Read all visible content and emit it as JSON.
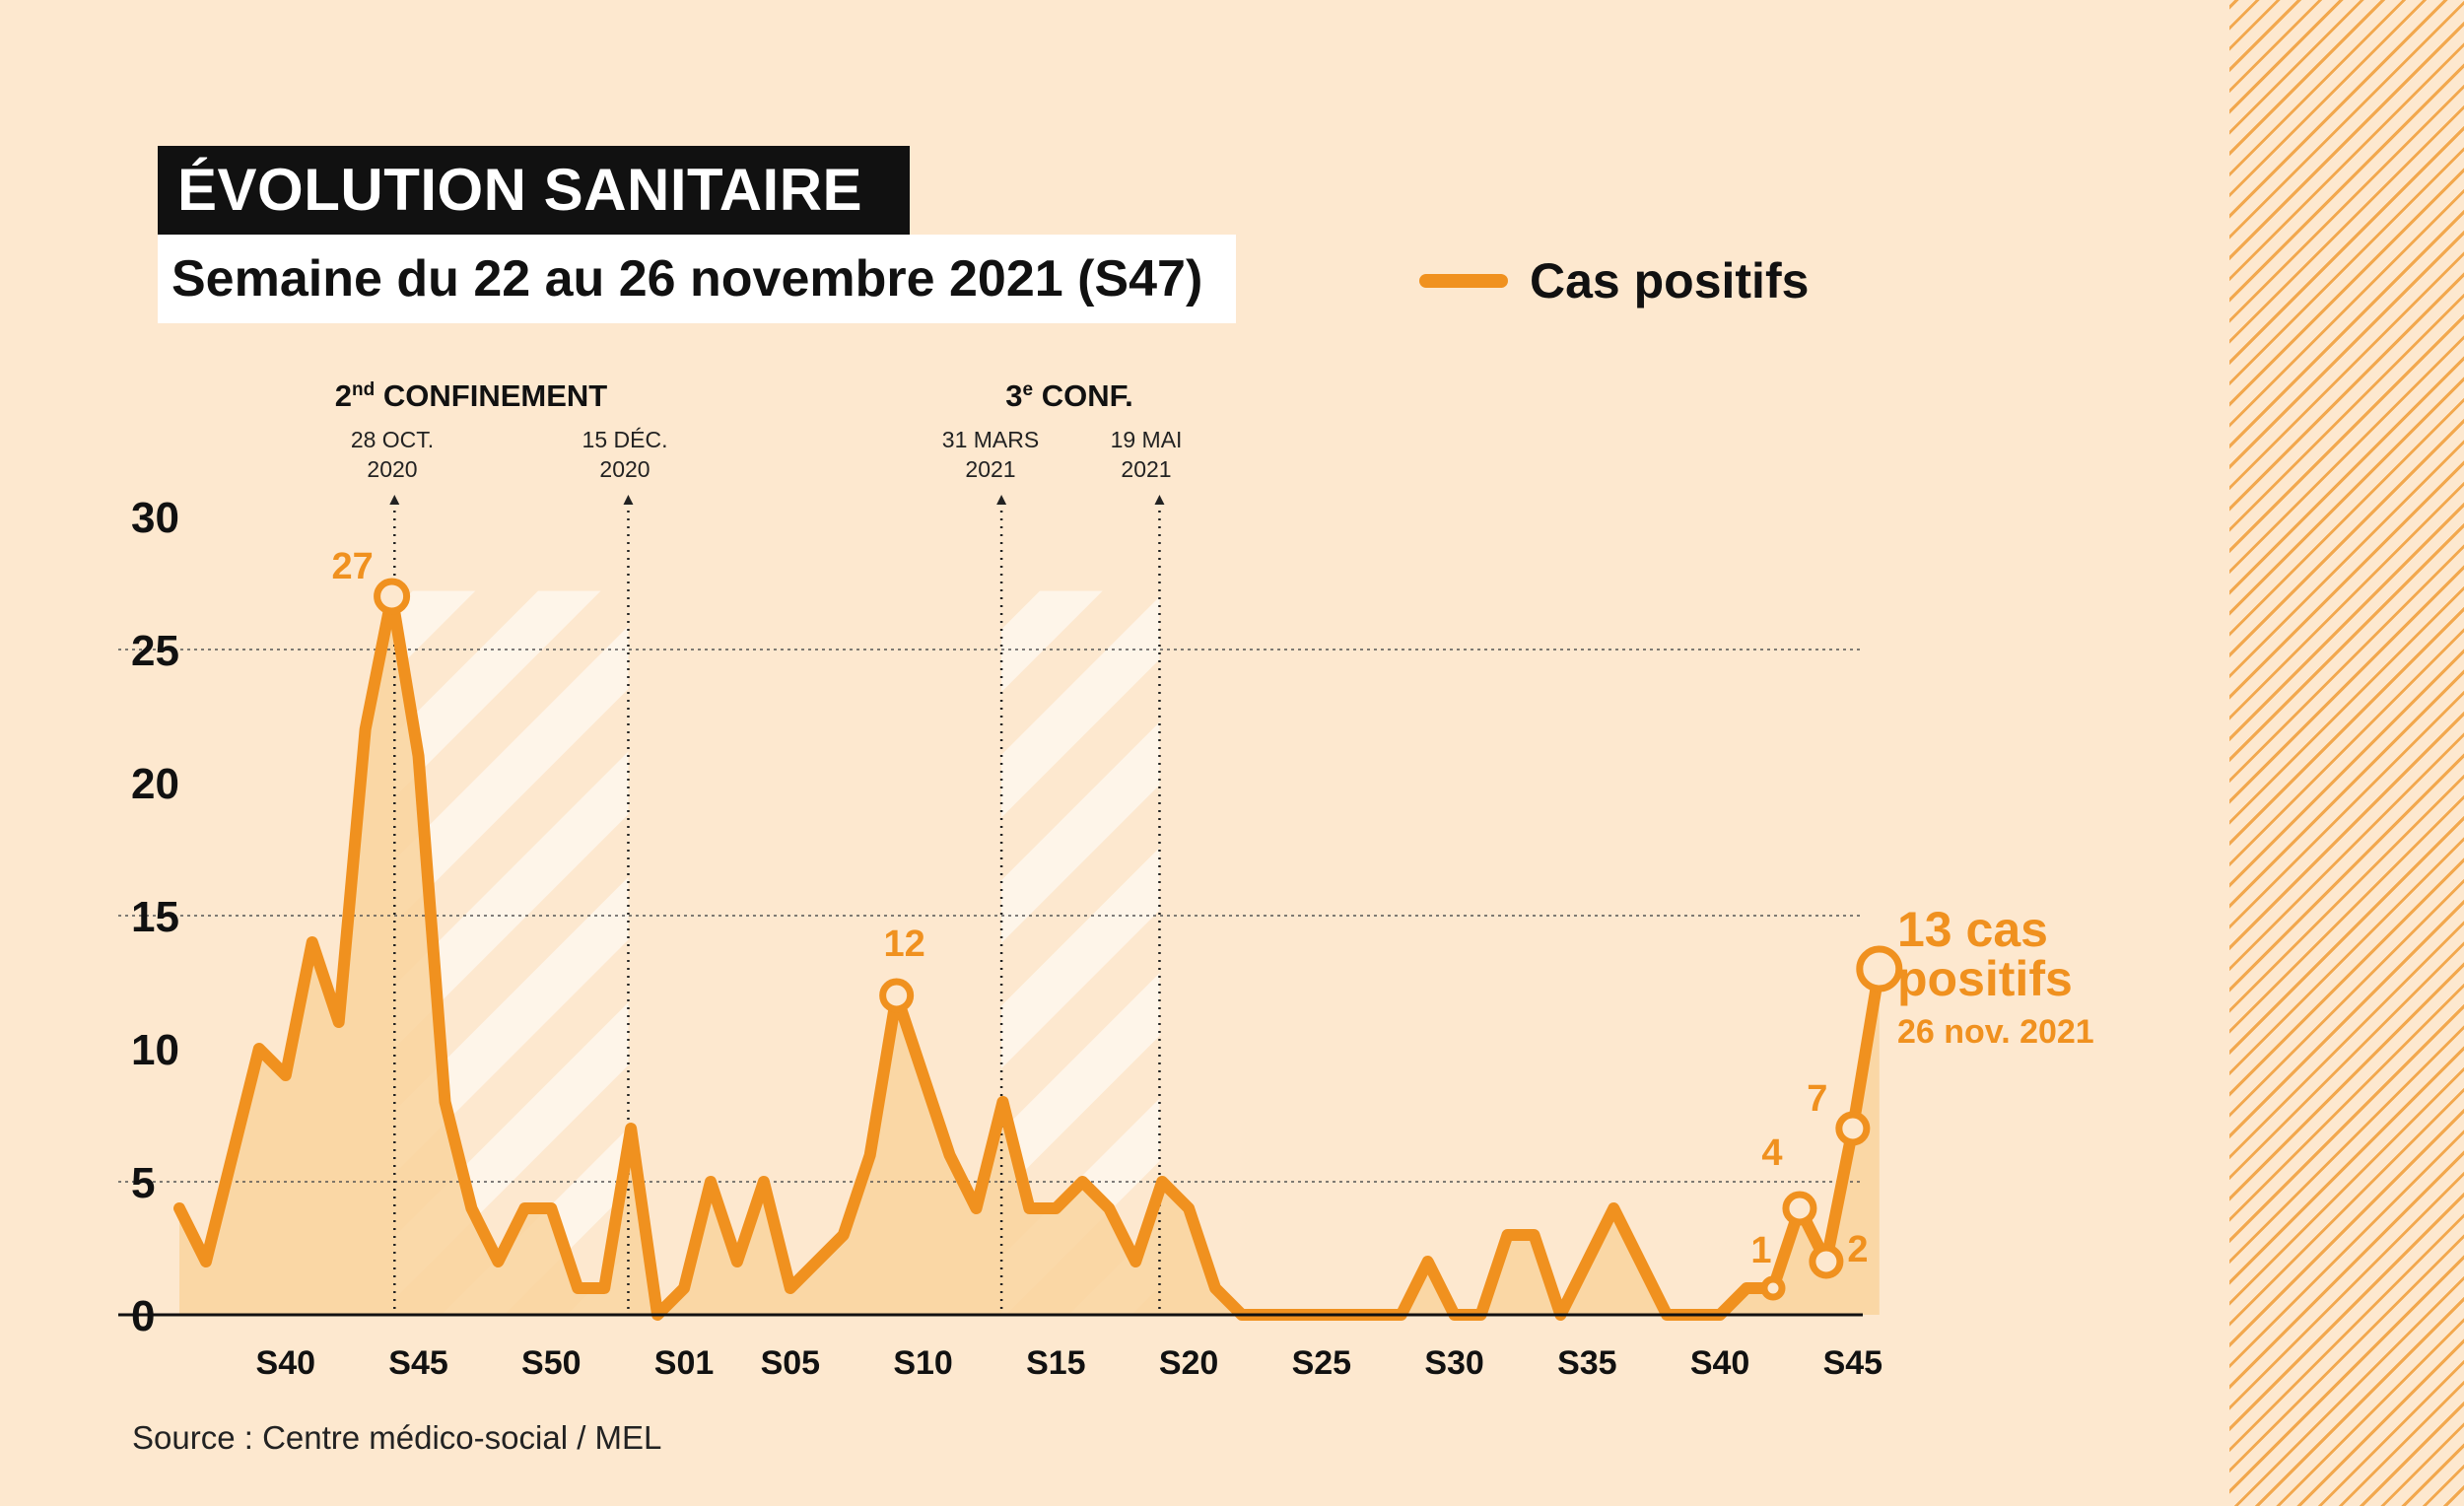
{
  "header": {
    "title": "ÉVOLUTION SANITAIRE",
    "subtitle": "Semaine du 22 au 26 novembre 2021 (S47)"
  },
  "legend": {
    "label": "Cas positifs"
  },
  "source": "Source : Centre médico-social / MEL",
  "colors": {
    "line": "#f0911f",
    "area": "#f9d39e",
    "background": "#fde8cf",
    "hatch": "#ffffff"
  },
  "events": [
    {
      "id": "conf2",
      "label_main": "2",
      "label_sup": "nd",
      "label_rest": " CONFINEMENT",
      "start_date": [
        "28 OCT.",
        "2020"
      ],
      "end_date": [
        "15 DÉC.",
        "2020"
      ]
    },
    {
      "id": "conf3",
      "label_main": "3",
      "label_sup": "e",
      "label_rest": " CONF.",
      "start_date": [
        "31 MARS",
        "2021"
      ],
      "end_date": [
        "19 MAI",
        "2021"
      ]
    }
  ],
  "callout": {
    "value_line1": "13 cas",
    "value_line2": "positifs",
    "date": "26 nov. 2021"
  },
  "chart_data": {
    "type": "area",
    "title": "ÉVOLUTION SANITAIRE",
    "subtitle": "Semaine du 22 au 26 novembre 2021 (S47)",
    "xlabel": "",
    "ylabel": "",
    "ylim": [
      0,
      30
    ],
    "yticks": [
      0,
      5,
      10,
      15,
      20,
      25,
      30
    ],
    "gridlines_y": [
      5,
      15,
      25
    ],
    "legend_position": "top-right",
    "x_tick_labels": [
      {
        "index": 4,
        "label": "S40"
      },
      {
        "index": 9,
        "label": "S45"
      },
      {
        "index": 14,
        "label": "S50"
      },
      {
        "index": 19,
        "label": "S01"
      },
      {
        "index": 23,
        "label": "S05"
      },
      {
        "index": 28,
        "label": "S10"
      },
      {
        "index": 33,
        "label": "S15"
      },
      {
        "index": 38,
        "label": "S20"
      },
      {
        "index": 43,
        "label": "S25"
      },
      {
        "index": 48,
        "label": "S30"
      },
      {
        "index": 53,
        "label": "S35"
      },
      {
        "index": 58,
        "label": "S40"
      },
      {
        "index": 63,
        "label": "S45"
      }
    ],
    "series": [
      {
        "name": "Cas positifs",
        "values": [
          4,
          2,
          6,
          10,
          9,
          14,
          11,
          22,
          27,
          21,
          8,
          4,
          2,
          4,
          4,
          1,
          1,
          7,
          0,
          1,
          5,
          2,
          5,
          1,
          2,
          3,
          6,
          12,
          9,
          6,
          4,
          8,
          4,
          4,
          5,
          4,
          2,
          5,
          4,
          1,
          0,
          0,
          0,
          0,
          0,
          0,
          0,
          2,
          0,
          0,
          3,
          3,
          0,
          2,
          4,
          2,
          0,
          0,
          0,
          1,
          1,
          4,
          2,
          7,
          13
        ]
      }
    ],
    "annotations": [
      {
        "index": 8,
        "value": 27,
        "label": "27"
      },
      {
        "index": 27,
        "value": 12,
        "label": "12"
      },
      {
        "index": 60,
        "value": 1,
        "label": "1"
      },
      {
        "index": 61,
        "value": 4,
        "label": "4"
      },
      {
        "index": 62,
        "value": 2,
        "label": "2"
      },
      {
        "index": 63,
        "value": 7,
        "label": "7"
      },
      {
        "index": 64,
        "value": 13,
        "label": "13"
      }
    ],
    "periods": [
      {
        "name": "2nd confinement",
        "start_index": 8.1,
        "end_index": 16.9
      },
      {
        "name": "3e confinement",
        "start_index": 30.95,
        "end_index": 36.9
      }
    ]
  }
}
